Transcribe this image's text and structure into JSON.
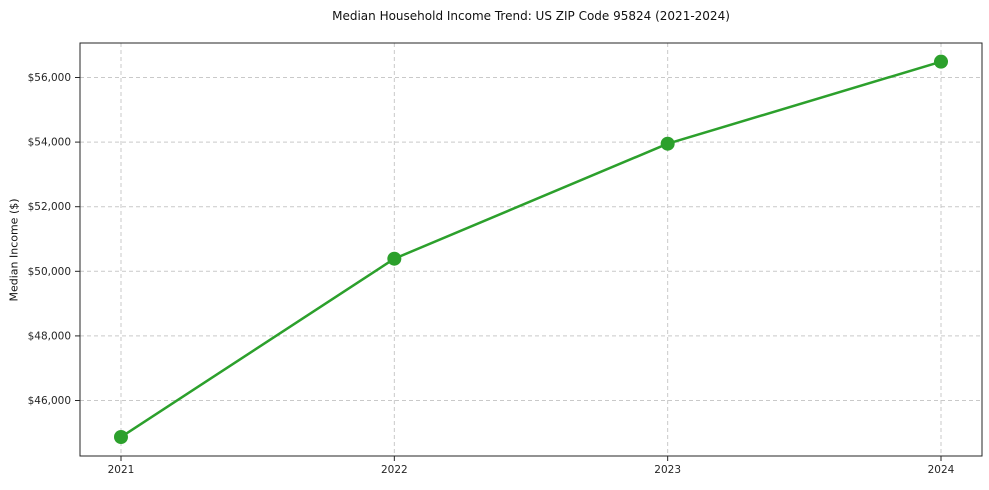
{
  "figure": {
    "title": "Median Household Income Trend: US ZIP Code 95824 (2021-2024)",
    "ylabel": "Median Income ($)"
  },
  "chart_data": {
    "type": "line",
    "title": "Median Household Income Trend: US ZIP Code 95824 (2021-2024)",
    "xlabel": "",
    "ylabel": "Median Income ($)",
    "x": [
      2021,
      2022,
      2023,
      2024
    ],
    "series": [
      {
        "name": "Median Household Income",
        "values": [
          44870,
          50390,
          53950,
          56490
        ]
      }
    ],
    "x_tick_labels": [
      "2021",
      "2022",
      "2023",
      "2024"
    ],
    "y_tick_values": [
      46000,
      48000,
      50000,
      52000,
      54000,
      56000
    ],
    "y_tick_labels": [
      "$46,000",
      "$48,000",
      "$50,000",
      "$52,000",
      "$54,000",
      "$56,000"
    ],
    "xlim": [
      2020.85,
      2024.15
    ],
    "ylim": [
      44282,
      57068
    ],
    "grid": true,
    "grid_style": "dashed",
    "legend": false,
    "colors": {
      "line": "#2ca02c",
      "marker": "#2ca02c",
      "grid": "#c9c9c9",
      "spine": "#262626",
      "tick_text": "#262626",
      "background": "#ffffff"
    }
  }
}
